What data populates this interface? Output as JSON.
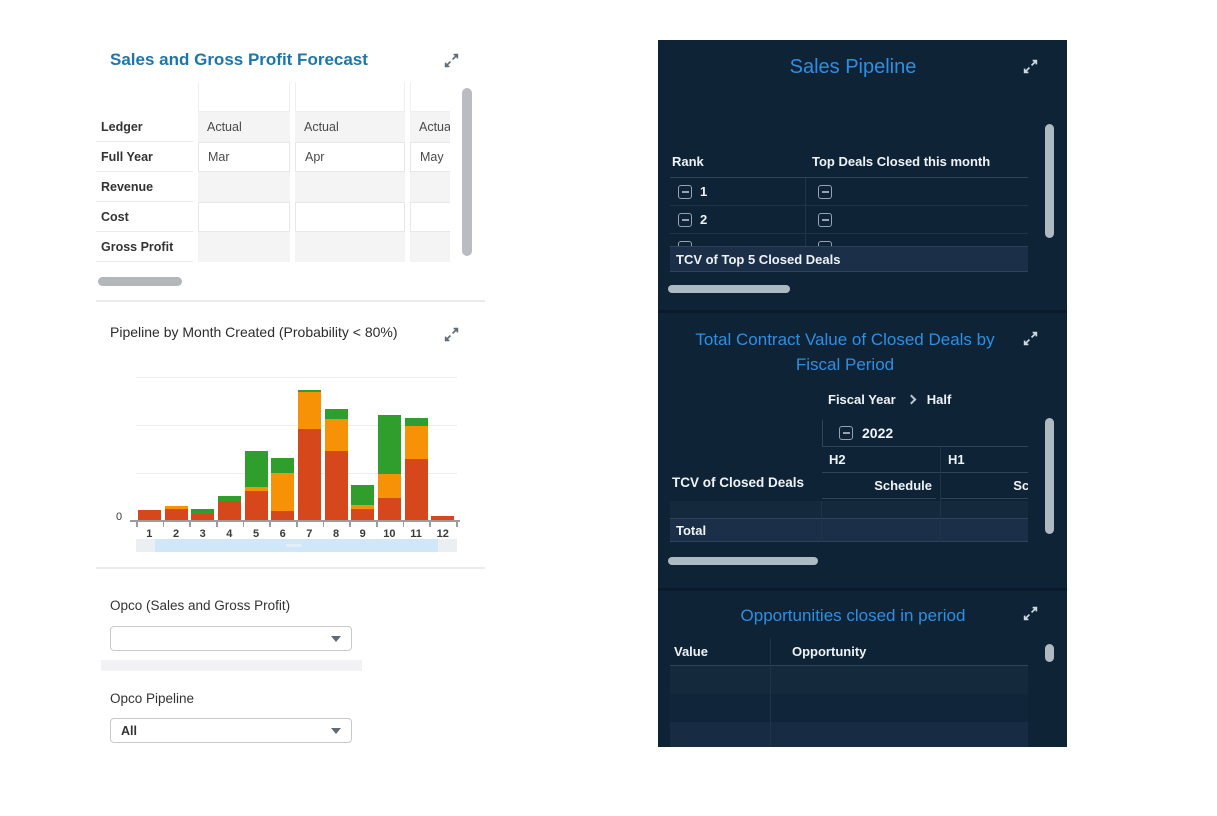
{
  "colors": {
    "left_title_blue": "#1d76ab",
    "right_title_blue": "#2e8fe2",
    "right_panel_bg": "#0e2336",
    "chart_scroll_strip": "#cfe7f8"
  },
  "left_panel": {
    "forecast": {
      "title": "Sales and Gross Profit Forecast",
      "table": {
        "row_headers": [
          "Ledger",
          "Full Year",
          "Revenue",
          "Cost",
          "Gross Profit"
        ],
        "rows": [
          [
            "Actual",
            "Actual",
            "Actual"
          ],
          [
            "Mar",
            "Apr",
            "May"
          ],
          [
            "",
            "",
            ""
          ],
          [
            "",
            "",
            ""
          ],
          [
            "",
            "",
            ""
          ]
        ]
      }
    },
    "pipeline_chart": {
      "title": "Pipeline by Month Created (Probability < 80%)",
      "y_axis_labels": [
        "0"
      ],
      "chart_data": {
        "type": "bar",
        "stacked": true,
        "title": "Pipeline by Month Created (Probability < 80%)",
        "categories": [
          "1",
          "2",
          "3",
          "4",
          "5",
          "6",
          "7",
          "8",
          "9",
          "10",
          "11",
          "12"
        ],
        "series": [
          {
            "name": "segment-red",
            "color": "#d6481b",
            "values": [
              7,
              7.5,
              4,
              13,
              20.5,
              6,
              64,
              48,
              8,
              15.5,
              43,
              3
            ]
          },
          {
            "name": "segment-orange",
            "color": "#f79106",
            "values": [
              0,
              2.5,
              0,
              0,
              2.5,
              27,
              25.5,
              23,
              2.5,
              17,
              22.5,
              0
            ]
          },
          {
            "name": "segment-green",
            "color": "#2f9e2c",
            "values": [
              0,
              0,
              4,
              3.5,
              25,
              10.5,
              1.5,
              6.5,
              14,
              41,
              6,
              0
            ]
          }
        ],
        "xlabel": "",
        "ylabel": "",
        "ylim": [
          0,
          100
        ],
        "value_units": "percent of visible plot height; only the 0 tick is labeled on the axis",
        "grid": "horizontal",
        "legend": "none"
      }
    },
    "filters": {
      "opco_sales": {
        "label": "Opco (Sales and Gross Profit)",
        "value": ""
      },
      "opco_pipeline": {
        "label": "Opco Pipeline",
        "value": "All"
      }
    }
  },
  "right_panel": {
    "sales_pipeline": {
      "title": "Sales Pipeline",
      "columns": [
        "Rank",
        "Top Deals Closed this month"
      ],
      "rows": [
        {
          "rank": "1"
        },
        {
          "rank": "2"
        }
      ],
      "footer": "TCV of Top 5 Closed Deals"
    },
    "tcv_section": {
      "title": "Total Contract Value of Closed Deals by Fiscal Period",
      "breadcrumb": {
        "level1": "Fiscal Year",
        "level2": "Half"
      },
      "year_group": "2022",
      "column_groups": [
        "H2",
        "H1"
      ],
      "measure_label": "Schedule",
      "row_header": "TCV of Closed Deals",
      "total_label": "Total"
    },
    "opportunities": {
      "title": "Opportunities closed in period",
      "columns": [
        "Value",
        "Opportunity"
      ]
    }
  }
}
